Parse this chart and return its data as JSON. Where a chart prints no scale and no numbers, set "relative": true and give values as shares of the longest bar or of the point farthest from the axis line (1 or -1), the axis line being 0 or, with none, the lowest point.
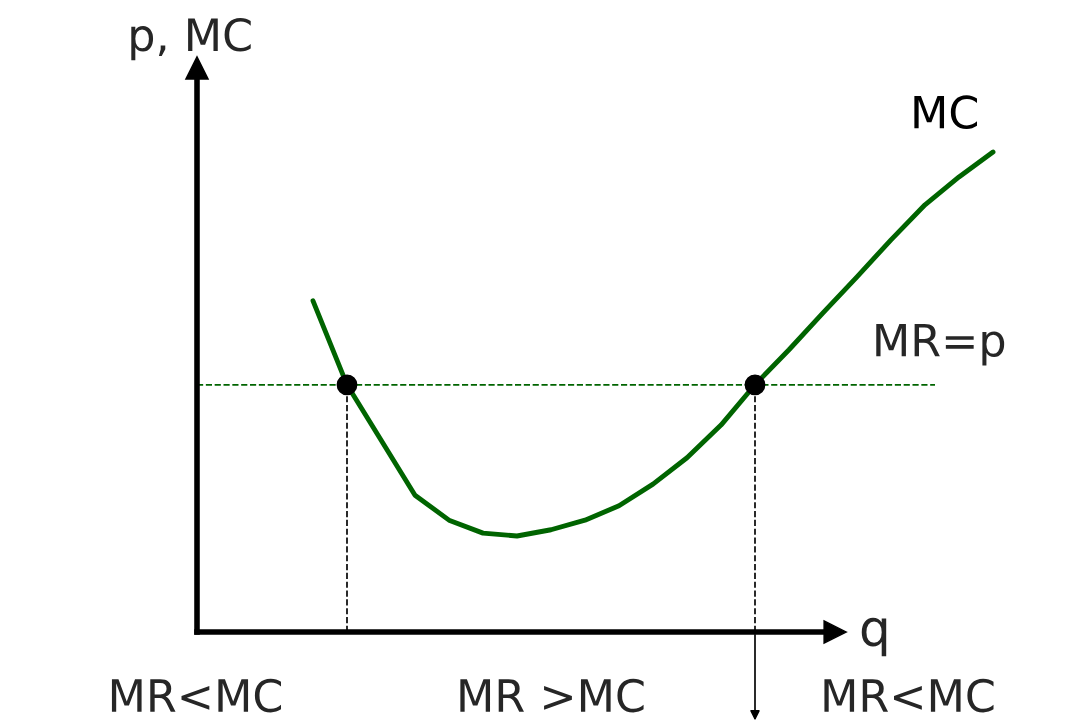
{
  "chart_data": {
    "type": "line",
    "relative": true,
    "xlabel": "q",
    "ylabel": "p, MC",
    "categories": [
      null,
      null,
      null,
      null,
      null,
      null,
      null,
      null,
      null,
      null,
      null,
      null,
      null,
      null,
      null,
      null,
      null,
      null,
      null,
      null,
      null
    ],
    "series": [
      {
        "name": "MC",
        "color": "#006400",
        "values": [
          0.69,
          0.515,
          0.4,
          0.285,
          0.233,
          0.206,
          0.2,
          0.213,
          0.233,
          0.263,
          0.308,
          0.363,
          0.431,
          0.515,
          0.588,
          0.665,
          0.74,
          0.817,
          0.89,
          0.948,
          1
        ]
      }
    ],
    "ref_lines": [
      {
        "axis": "y",
        "value": 0.515,
        "label": "MR=p",
        "color": "#006400",
        "line_style": "dashed"
      }
    ],
    "annotations": [
      "MR<MC",
      "MR >MC",
      "MR<MC"
    ],
    "legend": false
  }
}
